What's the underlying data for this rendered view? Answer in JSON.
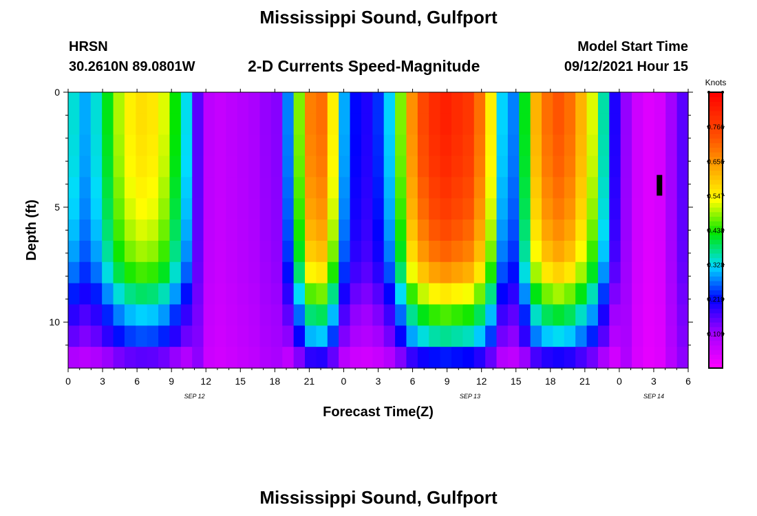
{
  "page": {
    "title": "Mississippi Sound, Gulfport",
    "footer_title": "Mississippi Sound, Gulfport",
    "station_id": "HRSN",
    "station_location": "30.2610N  89.0801W",
    "plot_title": "2-D Currents Speed-Magnitude",
    "model_start_label": "Model Start Time",
    "model_start_value": "09/12/2021 Hour 15"
  },
  "chart_data": {
    "type": "heatmap",
    "title": "2-D Currents Speed-Magnitude",
    "xlabel": "Forecast Time(Z)",
    "ylabel": "Depth (ft)",
    "x_range_hours": [
      0,
      54
    ],
    "y_range_ft": [
      0,
      12
    ],
    "x_tick_hours": [
      0,
      3,
      6,
      9,
      12,
      15,
      18,
      21,
      24,
      27,
      30,
      33,
      36,
      39,
      42,
      45,
      48,
      51,
      54
    ],
    "x_tick_labels": [
      "0",
      "3",
      "6",
      "9",
      "12",
      "15",
      "18",
      "21",
      "0",
      "3",
      "6",
      "9",
      "12",
      "15",
      "18",
      "21",
      "0",
      "3",
      "6"
    ],
    "day_labels": [
      {
        "hour": 11,
        "label": "SEP 12"
      },
      {
        "hour": 35,
        "label": "SEP 13"
      },
      {
        "hour": 51,
        "label": "SEP 14"
      }
    ],
    "y_ticks": [
      0,
      5,
      10
    ],
    "y_tick_labels": [
      "0",
      "5",
      "10"
    ],
    "colorbar": {
      "unit": "Knots",
      "range": [
        0.0,
        0.875
      ],
      "tick_values": [
        0.109,
        0.219,
        0.328,
        0.438,
        0.547,
        0.656,
        0.766
      ],
      "tick_labels": [
        "0.109",
        "0.219",
        "0.328",
        "0.438",
        "0.547",
        "0.656",
        "0.766"
      ]
    },
    "surface_speed_by_hour": [
      0.34,
      0.3,
      0.34,
      0.42,
      0.5,
      0.55,
      0.57,
      0.56,
      0.52,
      0.43,
      0.33,
      0.16,
      0.08,
      0.07,
      0.08,
      0.09,
      0.1,
      0.12,
      0.13,
      0.28,
      0.48,
      0.68,
      0.7,
      0.55,
      0.3,
      0.22,
      0.2,
      0.24,
      0.32,
      0.48,
      0.66,
      0.75,
      0.8,
      0.82,
      0.8,
      0.78,
      0.7,
      0.55,
      0.32,
      0.28,
      0.42,
      0.62,
      0.7,
      0.73,
      0.7,
      0.62,
      0.52,
      0.36,
      0.2,
      0.12,
      0.06,
      0.04,
      0.05,
      0.11,
      0.16
    ],
    "depth_profile": [
      1.0,
      1.0,
      0.99,
      0.98,
      0.96,
      0.94,
      0.91,
      0.87,
      0.8,
      0.68,
      0.56,
      0.45,
      0.28
    ],
    "annotation": {
      "type": "marker",
      "hour": 51.5,
      "depth_range_ft": [
        3.6,
        4.5
      ],
      "color": "#000000"
    }
  }
}
